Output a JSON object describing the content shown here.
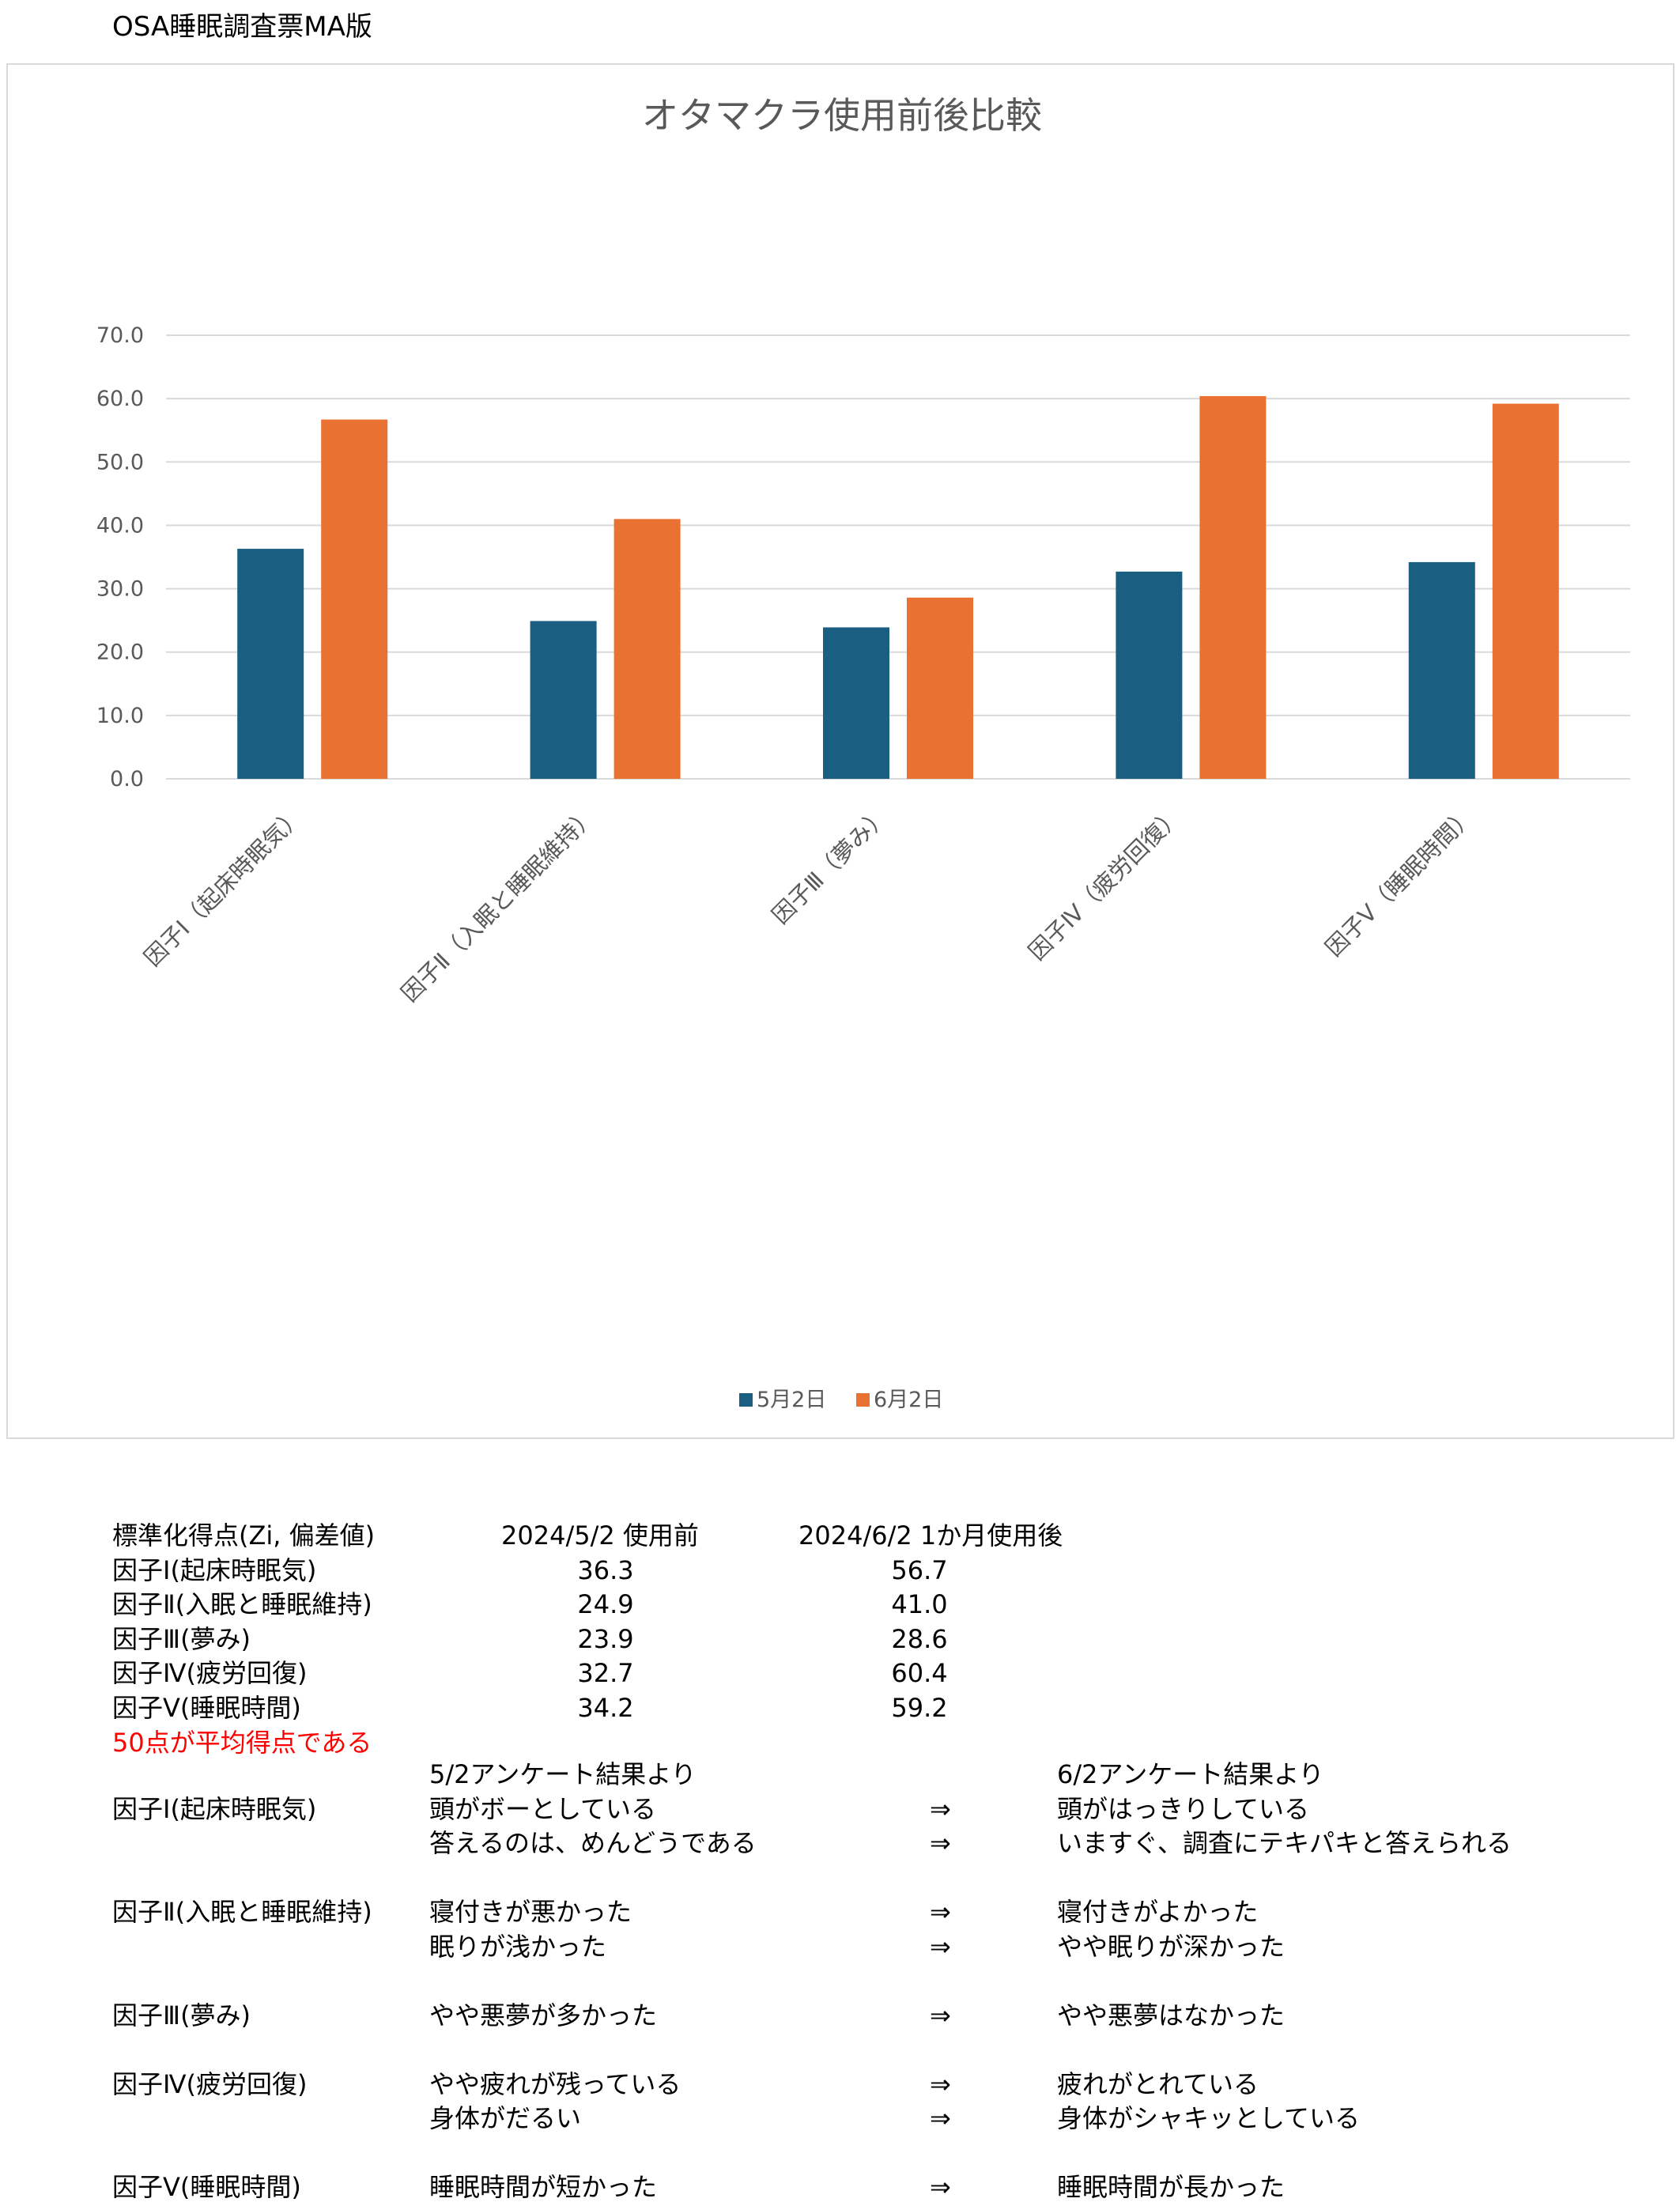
{
  "page_title": "OSA睡眠調査票MA版",
  "chart_data": {
    "type": "bar",
    "title": "オタマクラ使用前後比較",
    "categories": [
      "因子Ⅰ（起床時眠気）",
      "因子Ⅱ（入眠と睡眠維持）",
      "因子Ⅲ（夢み）",
      "因子Ⅳ（疲労回復）",
      "因子Ⅴ（睡眠時間）"
    ],
    "series": [
      {
        "name": "5月2日",
        "values": [
          36.3,
          24.9,
          23.9,
          32.7,
          34.2
        ],
        "color": "#1a5f82"
      },
      {
        "name": "6月2日",
        "values": [
          56.7,
          41.0,
          28.6,
          60.4,
          59.2
        ],
        "color": "#e97132"
      }
    ],
    "ylim": [
      0,
      70
    ],
    "yticks": [
      "0.0",
      "10.0",
      "20.0",
      "30.0",
      "40.0",
      "50.0",
      "60.0",
      "70.0"
    ],
    "grid": true,
    "legend": "bottom"
  },
  "score_table": {
    "headers": [
      "標準化得点(Zi, 偏差値)",
      "2024/5/2  使用前",
      "2024/6/2  1か月使用後"
    ],
    "rows": [
      {
        "label": "因子Ⅰ(起床時眠気)",
        "before": "36.3",
        "after": "56.7"
      },
      {
        "label": "因子Ⅱ(入眠と睡眠維持)",
        "before": "24.9",
        "after": "41.0"
      },
      {
        "label": "因子Ⅲ(夢み)",
        "before": "23.9",
        "after": "28.6"
      },
      {
        "label": "因子Ⅳ(疲労回復)",
        "before": "32.7",
        "after": "60.4"
      },
      {
        "label": "因子Ⅴ(睡眠時間)",
        "before": "34.2",
        "after": "59.2"
      }
    ],
    "note": "50点が平均得点である"
  },
  "comments": {
    "before_header": "5/2アンケート結果より",
    "after_header": "6/2アンケート結果より",
    "arrow": "⇒",
    "lines": [
      {
        "factor": "因子Ⅰ(起床時眠気)",
        "before": "頭がボーとしている",
        "after": "頭がはっきりしている"
      },
      {
        "factor": "",
        "before": "答えるのは、めんどうである",
        "after": "いますぐ、調査にテキパキと答えられる"
      },
      {
        "factor": "因子Ⅱ(入眠と睡眠維持)",
        "before": "寝付きが悪かった",
        "after": "寝付きがよかった"
      },
      {
        "factor": "",
        "before": "眠りが浅かった",
        "after": "やや眠りが深かった"
      },
      {
        "factor": "因子Ⅲ(夢み)",
        "before": "やや悪夢が多かった",
        "after": "やや悪夢はなかった"
      },
      {
        "factor": "因子Ⅳ(疲労回復)",
        "before": "やや疲れが残っている",
        "after": "疲れがとれている"
      },
      {
        "factor": "",
        "before": "身体がだるい",
        "after": "身体がシャキッとしている"
      },
      {
        "factor": "因子Ⅴ(睡眠時間)",
        "before": "睡眠時間が短かった",
        "after": "睡眠時間が長かった"
      }
    ]
  }
}
